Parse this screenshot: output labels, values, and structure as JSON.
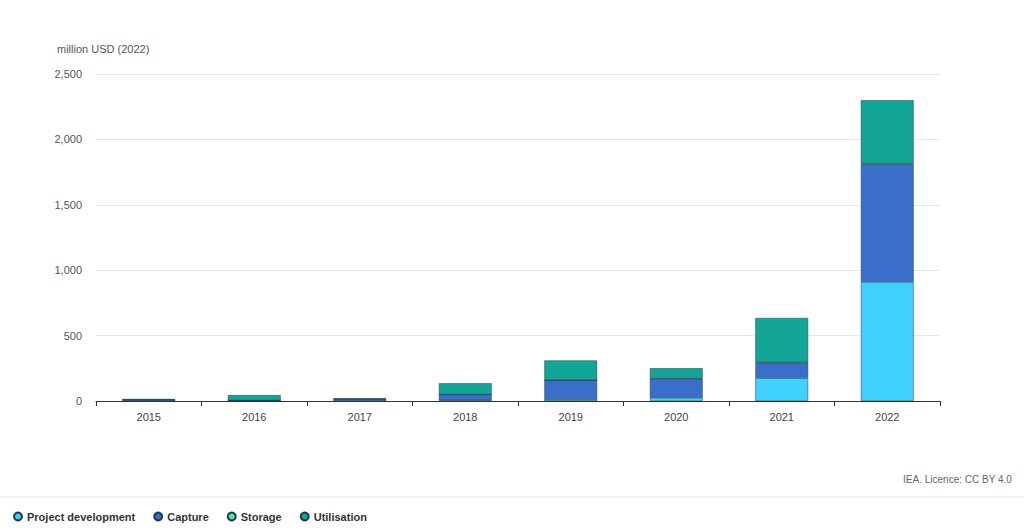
{
  "chart_data": {
    "type": "bar",
    "ylabel": "million USD (2022)",
    "source": "IEA. Licence: CC BY 4.0",
    "categories": [
      "2015",
      "2016",
      "2017",
      "2018",
      "2019",
      "2020",
      "2021",
      "2022"
    ],
    "series": [
      {
        "name": "Project development",
        "color": "#41cfff",
        "values": [
          0,
          0,
          0,
          5,
          10,
          25,
          175,
          910
        ]
      },
      {
        "name": "Capture",
        "color": "#3a6fc9",
        "values": [
          10,
          5,
          15,
          45,
          150,
          145,
          115,
          900
        ]
      },
      {
        "name": "Storage",
        "color": "#4ee9a0",
        "values": [
          0,
          0,
          0,
          0,
          0,
          5,
          5,
          5
        ]
      },
      {
        "name": "Utilisation",
        "color": "#13a596",
        "values": [
          5,
          40,
          5,
          85,
          150,
          75,
          340,
          485
        ]
      }
    ],
    "ylim": [
      0,
      2500
    ],
    "yticks": [
      0,
      500,
      1000,
      1500,
      2000,
      2500
    ],
    "stacked": true,
    "grid": true,
    "legend": "bottom-left"
  }
}
